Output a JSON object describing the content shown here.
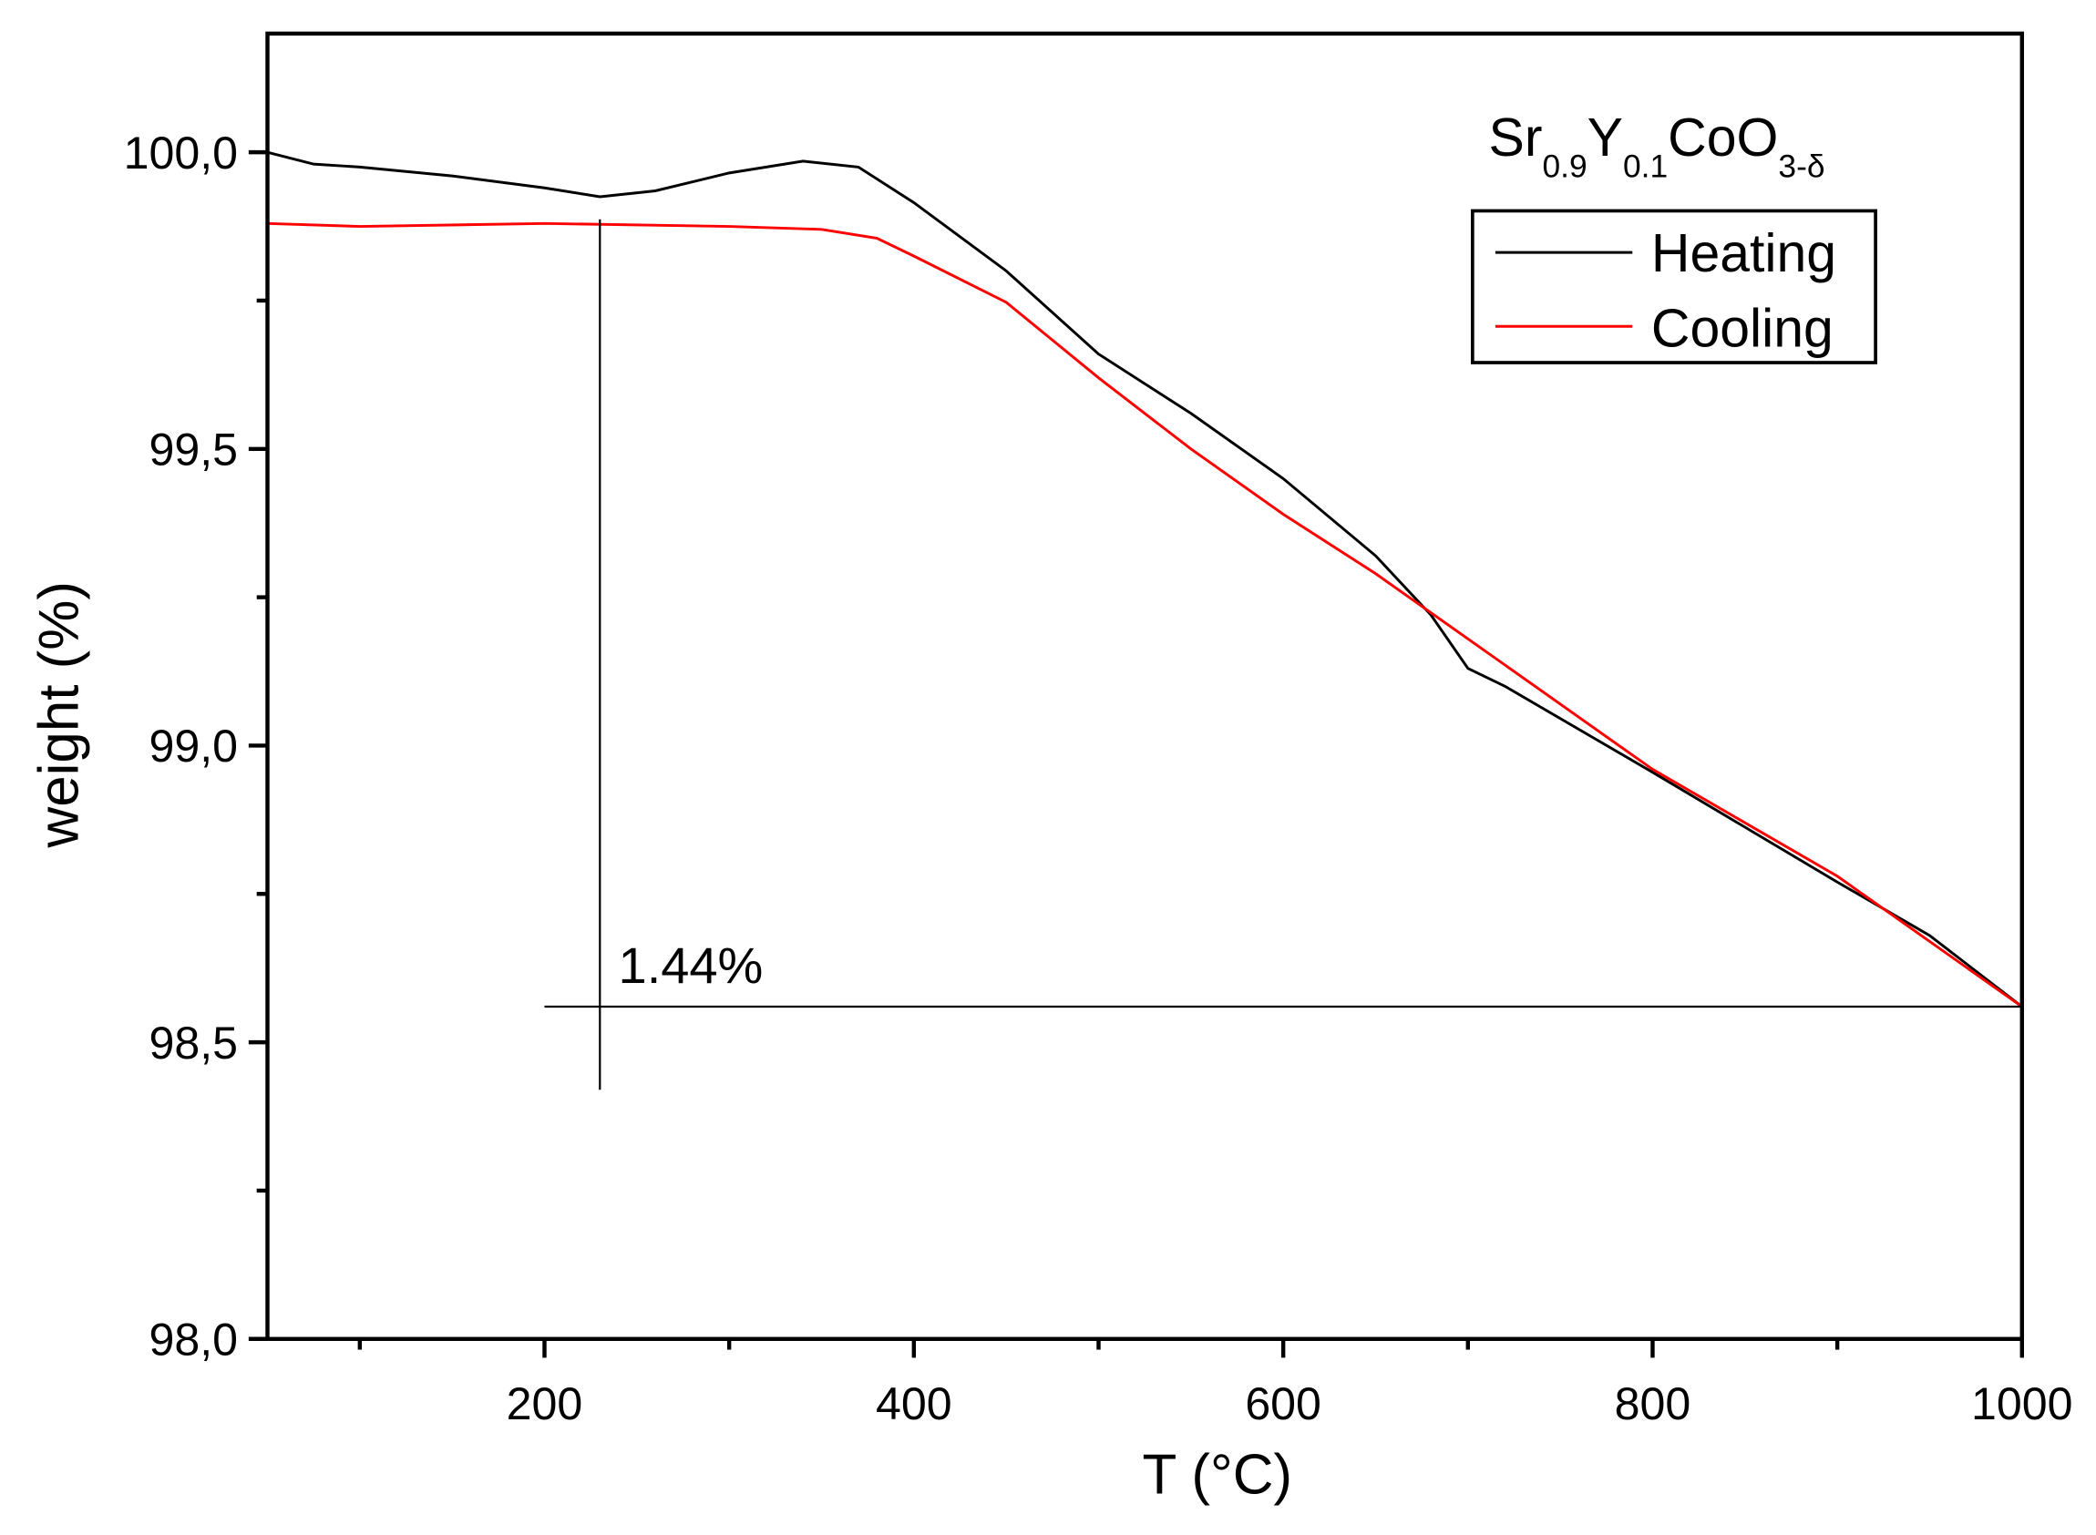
{
  "chart_data": {
    "type": "line",
    "title": "",
    "xlabel": "T (°C)",
    "ylabel": "weight (%)",
    "xlim": [
      50,
      1000
    ],
    "ylim": [
      98.0,
      100.2
    ],
    "xticks": [
      200,
      400,
      600,
      800,
      1000
    ],
    "xtick_labels": [
      "200",
      "400",
      "600",
      "800",
      "1000"
    ],
    "yticks": [
      98.0,
      98.5,
      99.0,
      99.5,
      100.0
    ],
    "ytick_labels": [
      "98,0",
      "98,5",
      "99,0",
      "99,5",
      "100,0"
    ],
    "grid": false,
    "compound": {
      "base": "Sr",
      "sub1": "0.9",
      "el2": "Y",
      "sub2": "0.1",
      "el3": "CoO",
      "sub3": "3-δ"
    },
    "legend": {
      "placement": "top-right",
      "entries": [
        "Heating",
        "Cooling"
      ]
    },
    "series": [
      {
        "name": "Heating",
        "color": "#000000",
        "x": [
          50,
          75,
          100,
          150,
          200,
          230,
          260,
          300,
          340,
          370,
          400,
          450,
          500,
          550,
          600,
          650,
          680,
          700,
          720,
          800,
          900,
          950,
          1000
        ],
        "y": [
          100.0,
          99.98,
          99.975,
          99.96,
          99.94,
          99.925,
          99.935,
          99.965,
          99.985,
          99.975,
          99.915,
          99.8,
          99.66,
          99.56,
          99.45,
          99.32,
          99.22,
          99.13,
          99.1,
          98.955,
          98.77,
          98.68,
          98.56
        ]
      },
      {
        "name": "Cooling",
        "color": "#ff0000",
        "x": [
          50,
          100,
          200,
          300,
          350,
          380,
          400,
          450,
          500,
          550,
          600,
          650,
          700,
          800,
          900,
          1000
        ],
        "y": [
          99.88,
          99.875,
          99.88,
          99.875,
          99.87,
          99.855,
          99.825,
          99.747,
          99.62,
          99.5,
          99.39,
          99.29,
          99.18,
          98.96,
          98.78,
          98.56
        ]
      }
    ],
    "annotations": {
      "vline_x": 230,
      "vline_y": [
        98.42,
        99.887
      ],
      "hline_y": 98.56,
      "hline_x": [
        200,
        1000
      ],
      "label": "1.44%",
      "label_pos": [
        240,
        98.6
      ]
    }
  }
}
